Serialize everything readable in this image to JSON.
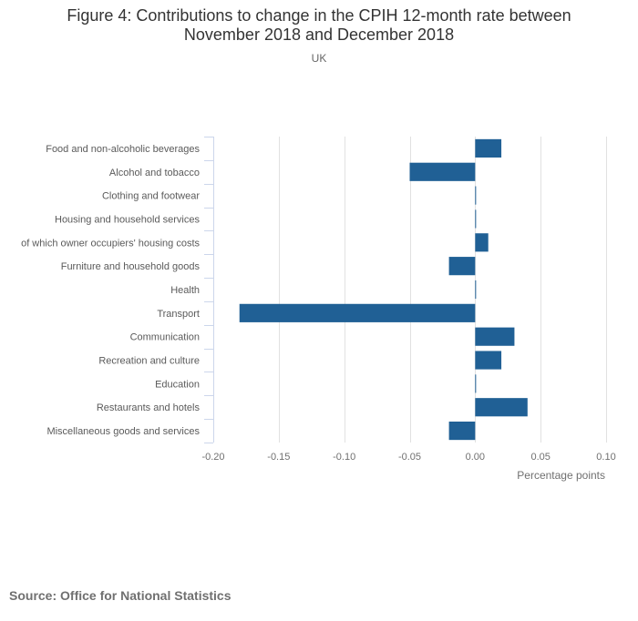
{
  "title_line1": "Figure 4: Contributions to change in the CPIH 12-month rate between",
  "title_line2": "November 2018 and December 2018",
  "subtitle": "UK",
  "source": "Source: Office for National Statistics",
  "colors": {
    "bar": "#206095",
    "grid": "#e1e1e1",
    "axis": "#ccd6eb"
  },
  "chart_data": {
    "type": "bar",
    "orientation": "horizontal",
    "title": "Figure 4: Contributions to change in the CPIH 12-month rate between November 2018 and December 2018",
    "subtitle": "UK",
    "categories": [
      "Food and non-alcoholic beverages",
      "Alcohol and tobacco",
      "Clothing and footwear",
      "Housing and household services",
      "of which owner occupiers' housing costs",
      "Furniture and household goods",
      "Health",
      "Transport",
      "Communication",
      "Recreation and culture",
      "Education",
      "Restaurants and hotels",
      "Miscellaneous goods and services"
    ],
    "values": [
      0.02,
      -0.05,
      0.0,
      0.0,
      0.01,
      -0.02,
      0.0,
      -0.18,
      0.03,
      0.02,
      0.0,
      0.04,
      -0.02
    ],
    "xlabel": "Percentage points",
    "ylabel": "",
    "xlim": [
      -0.2,
      0.1
    ],
    "ticks": [
      -0.2,
      -0.15,
      -0.1,
      -0.05,
      0.0,
      0.05,
      0.1
    ],
    "tick_labels": [
      "-0.20",
      "-0.15",
      "-0.10",
      "-0.05",
      "0.00",
      "0.05",
      "0.10"
    ],
    "grid": true
  }
}
